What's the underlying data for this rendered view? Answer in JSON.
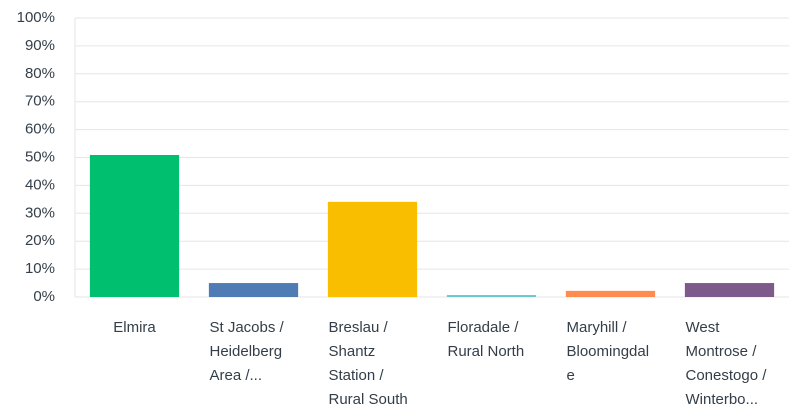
{
  "chart_data": {
    "type": "bar",
    "categories": [
      "Elmira",
      "St Jacobs / Heidelberg Area /...",
      "Breslau / Shantz Station / Rural South",
      "Floradale / Rural North",
      "Maryhill / Bloomingdale",
      "West Montrose / Conestogo / Winterbo..."
    ],
    "values": [
      50.9,
      5.0,
      34.1,
      0.7,
      2.2,
      5.0
    ],
    "colors": [
      "#00bf6f",
      "#507cb6",
      "#f9be00",
      "#6bc8cd",
      "#ff8b4f",
      "#7d5a8b"
    ],
    "ylim": [
      0,
      100
    ],
    "yticks": [
      {
        "value": 0,
        "label": "0%"
      },
      {
        "value": 10,
        "label": "10%"
      },
      {
        "value": 20,
        "label": "20%"
      },
      {
        "value": 30,
        "label": "30%"
      },
      {
        "value": 40,
        "label": "40%"
      },
      {
        "value": 50,
        "label": "50%"
      },
      {
        "value": 60,
        "label": "60%"
      },
      {
        "value": 70,
        "label": "70%"
      },
      {
        "value": 80,
        "label": "80%"
      },
      {
        "value": 90,
        "label": "90%"
      },
      {
        "value": 100,
        "label": "100%"
      }
    ],
    "grid": true
  }
}
